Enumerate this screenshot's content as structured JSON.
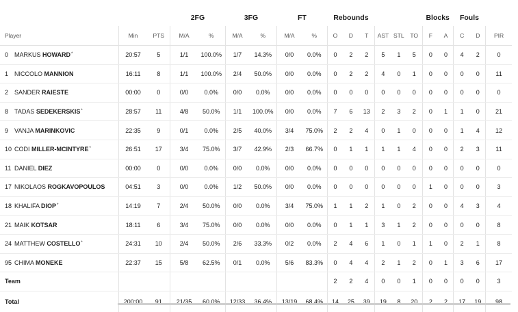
{
  "groups": {
    "fg2": "2FG",
    "fg3": "3FG",
    "ft": "FT",
    "rebounds": "Rebounds",
    "blocks": "Blocks",
    "fouls": "Fouls"
  },
  "columns": {
    "player": "Player",
    "min": "Min",
    "pts": "PTS",
    "fg2_ma": "M/A",
    "fg2_pct": "%",
    "fg3_ma": "M/A",
    "fg3_pct": "%",
    "ft_ma": "M/A",
    "ft_pct": "%",
    "reb_o": "O",
    "reb_d": "D",
    "reb_t": "T",
    "ast": "AST",
    "stl": "STL",
    "to": "TO",
    "blk_f": "F",
    "blk_a": "A",
    "foul_c": "C",
    "foul_d": "D",
    "pir": "PIR"
  },
  "players": [
    {
      "num": "0",
      "first": "MARKUS",
      "last": "HOWARD",
      "star": "*",
      "min": "20:57",
      "pts": "5",
      "fg2_ma": "1/1",
      "fg2_pct": "100.0%",
      "fg3_ma": "1/7",
      "fg3_pct": "14.3%",
      "ft_ma": "0/0",
      "ft_pct": "0.0%",
      "o": "0",
      "d": "2",
      "t": "2",
      "ast": "5",
      "stl": "1",
      "to": "5",
      "bf": "0",
      "ba": "0",
      "c": "4",
      "fd": "2",
      "pir": "0"
    },
    {
      "num": "1",
      "first": "NICCOLO",
      "last": "MANNION",
      "star": "",
      "min": "16:11",
      "pts": "8",
      "fg2_ma": "1/1",
      "fg2_pct": "100.0%",
      "fg3_ma": "2/4",
      "fg3_pct": "50.0%",
      "ft_ma": "0/0",
      "ft_pct": "0.0%",
      "o": "0",
      "d": "2",
      "t": "2",
      "ast": "4",
      "stl": "0",
      "to": "1",
      "bf": "0",
      "ba": "0",
      "c": "0",
      "fd": "0",
      "pir": "11"
    },
    {
      "num": "2",
      "first": "SANDER",
      "last": "RAIESTE",
      "star": "",
      "min": "00:00",
      "pts": "0",
      "fg2_ma": "0/0",
      "fg2_pct": "0.0%",
      "fg3_ma": "0/0",
      "fg3_pct": "0.0%",
      "ft_ma": "0/0",
      "ft_pct": "0.0%",
      "o": "0",
      "d": "0",
      "t": "0",
      "ast": "0",
      "stl": "0",
      "to": "0",
      "bf": "0",
      "ba": "0",
      "c": "0",
      "fd": "0",
      "pir": "0"
    },
    {
      "num": "8",
      "first": "TADAS",
      "last": "SEDEKERSKIS",
      "star": "*",
      "min": "28:57",
      "pts": "11",
      "fg2_ma": "4/8",
      "fg2_pct": "50.0%",
      "fg3_ma": "1/1",
      "fg3_pct": "100.0%",
      "ft_ma": "0/0",
      "ft_pct": "0.0%",
      "o": "7",
      "d": "6",
      "t": "13",
      "ast": "2",
      "stl": "3",
      "to": "2",
      "bf": "0",
      "ba": "1",
      "c": "1",
      "fd": "0",
      "pir": "21"
    },
    {
      "num": "9",
      "first": "VANJA",
      "last": "MARINKOVIC",
      "star": "",
      "min": "22:35",
      "pts": "9",
      "fg2_ma": "0/1",
      "fg2_pct": "0.0%",
      "fg3_ma": "2/5",
      "fg3_pct": "40.0%",
      "ft_ma": "3/4",
      "ft_pct": "75.0%",
      "o": "2",
      "d": "2",
      "t": "4",
      "ast": "0",
      "stl": "1",
      "to": "0",
      "bf": "0",
      "ba": "0",
      "c": "1",
      "fd": "4",
      "pir": "12"
    },
    {
      "num": "10",
      "first": "CODI",
      "last": "MILLER-MCINTYRE",
      "star": "*",
      "min": "26:51",
      "pts": "17",
      "fg2_ma": "3/4",
      "fg2_pct": "75.0%",
      "fg3_ma": "3/7",
      "fg3_pct": "42.9%",
      "ft_ma": "2/3",
      "ft_pct": "66.7%",
      "o": "0",
      "d": "1",
      "t": "1",
      "ast": "1",
      "stl": "1",
      "to": "4",
      "bf": "0",
      "ba": "0",
      "c": "2",
      "fd": "3",
      "pir": "11"
    },
    {
      "num": "11",
      "first": "DANIEL",
      "last": "DIEZ",
      "star": "",
      "min": "00:00",
      "pts": "0",
      "fg2_ma": "0/0",
      "fg2_pct": "0.0%",
      "fg3_ma": "0/0",
      "fg3_pct": "0.0%",
      "ft_ma": "0/0",
      "ft_pct": "0.0%",
      "o": "0",
      "d": "0",
      "t": "0",
      "ast": "0",
      "stl": "0",
      "to": "0",
      "bf": "0",
      "ba": "0",
      "c": "0",
      "fd": "0",
      "pir": "0"
    },
    {
      "num": "17",
      "first": "NIKOLAOS",
      "last": "ROGKAVOPOULOS",
      "star": "",
      "min": "04:51",
      "pts": "3",
      "fg2_ma": "0/0",
      "fg2_pct": "0.0%",
      "fg3_ma": "1/2",
      "fg3_pct": "50.0%",
      "ft_ma": "0/0",
      "ft_pct": "0.0%",
      "o": "0",
      "d": "0",
      "t": "0",
      "ast": "0",
      "stl": "0",
      "to": "0",
      "bf": "1",
      "ba": "0",
      "c": "0",
      "fd": "0",
      "pir": "3"
    },
    {
      "num": "18",
      "first": "KHALIFA",
      "last": "DIOP",
      "star": "*",
      "min": "14:19",
      "pts": "7",
      "fg2_ma": "2/4",
      "fg2_pct": "50.0%",
      "fg3_ma": "0/0",
      "fg3_pct": "0.0%",
      "ft_ma": "3/4",
      "ft_pct": "75.0%",
      "o": "1",
      "d": "1",
      "t": "2",
      "ast": "1",
      "stl": "0",
      "to": "2",
      "bf": "0",
      "ba": "0",
      "c": "4",
      "fd": "3",
      "pir": "4"
    },
    {
      "num": "21",
      "first": "MAIK",
      "last": "KOTSAR",
      "star": "",
      "min": "18:11",
      "pts": "6",
      "fg2_ma": "3/4",
      "fg2_pct": "75.0%",
      "fg3_ma": "0/0",
      "fg3_pct": "0.0%",
      "ft_ma": "0/0",
      "ft_pct": "0.0%",
      "o": "0",
      "d": "1",
      "t": "1",
      "ast": "3",
      "stl": "1",
      "to": "2",
      "bf": "0",
      "ba": "0",
      "c": "0",
      "fd": "0",
      "pir": "8"
    },
    {
      "num": "24",
      "first": "MATTHEW",
      "last": "COSTELLO",
      "star": "*",
      "min": "24:31",
      "pts": "10",
      "fg2_ma": "2/4",
      "fg2_pct": "50.0%",
      "fg3_ma": "2/6",
      "fg3_pct": "33.3%",
      "ft_ma": "0/2",
      "ft_pct": "0.0%",
      "o": "2",
      "d": "4",
      "t": "6",
      "ast": "1",
      "stl": "0",
      "to": "1",
      "bf": "1",
      "ba": "0",
      "c": "2",
      "fd": "1",
      "pir": "8"
    },
    {
      "num": "95",
      "first": "CHIMA",
      "last": "MONEKE",
      "star": "",
      "min": "22:37",
      "pts": "15",
      "fg2_ma": "5/8",
      "fg2_pct": "62.5%",
      "fg3_ma": "0/1",
      "fg3_pct": "0.0%",
      "ft_ma": "5/6",
      "ft_pct": "83.3%",
      "o": "0",
      "d": "4",
      "t": "4",
      "ast": "2",
      "stl": "1",
      "to": "2",
      "bf": "0",
      "ba": "1",
      "c": "3",
      "fd": "6",
      "pir": "17"
    }
  ],
  "team": {
    "label": "Team",
    "o": "2",
    "d": "2",
    "t": "4",
    "ast": "0",
    "stl": "0",
    "to": "1",
    "bf": "0",
    "ba": "0",
    "c": "0",
    "fd": "0",
    "pir": "3"
  },
  "total": {
    "label": "Total",
    "min": "200:00",
    "pts": "91",
    "fg2_ma": "21/35",
    "fg2_pct": "60.0%",
    "fg3_ma": "12/33",
    "fg3_pct": "36.4%",
    "ft_ma": "13/19",
    "ft_pct": "68.4%",
    "o": "14",
    "d": "25",
    "t": "39",
    "ast": "19",
    "stl": "8",
    "to": "20",
    "bf": "2",
    "ba": "2",
    "c": "17",
    "fd": "19",
    "pir": "98"
  }
}
